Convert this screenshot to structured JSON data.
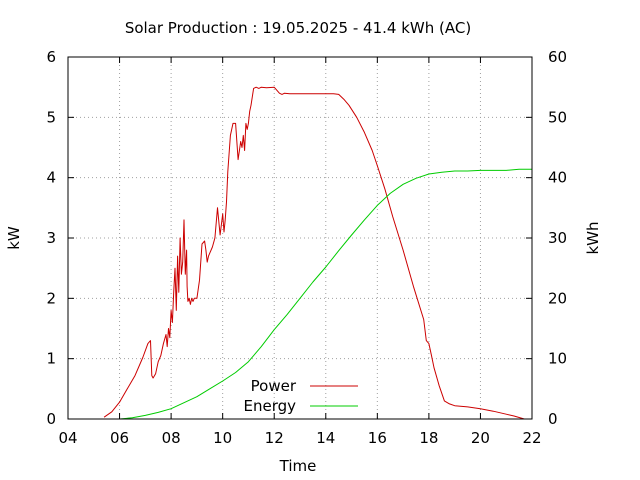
{
  "chart_data": {
    "type": "line",
    "title": "Solar Production : 19.05.2025 - 41.4 kWh (AC)",
    "xlabel": "Time",
    "ylabel": "kW",
    "y2label": "kWh",
    "xlim": [
      4,
      22
    ],
    "ylim": [
      0,
      6
    ],
    "y2lim": [
      0,
      60
    ],
    "x_ticks": [
      "04",
      "06",
      "08",
      "10",
      "12",
      "14",
      "16",
      "18",
      "20",
      "22"
    ],
    "y_ticks": [
      "0",
      "1",
      "2",
      "3",
      "4",
      "5",
      "6"
    ],
    "y2_ticks": [
      "0",
      "10",
      "20",
      "30",
      "40",
      "50",
      "60"
    ],
    "grid": true,
    "legend_position": "bottom-center",
    "series": [
      {
        "name": "Power",
        "axis": "y",
        "color": "#cc0000",
        "x": [
          5.4,
          5.7,
          6.0,
          6.3,
          6.6,
          6.9,
          7.1,
          7.2,
          7.25,
          7.3,
          7.4,
          7.5,
          7.6,
          7.7,
          7.8,
          7.85,
          7.9,
          7.95,
          8.0,
          8.05,
          8.1,
          8.15,
          8.2,
          8.25,
          8.3,
          8.35,
          8.4,
          8.45,
          8.5,
          8.55,
          8.6,
          8.62,
          8.65,
          8.7,
          8.75,
          8.8,
          8.85,
          8.9,
          9.0,
          9.1,
          9.2,
          9.3,
          9.35,
          9.4,
          9.45,
          9.5,
          9.6,
          9.7,
          9.8,
          9.9,
          10.0,
          10.05,
          10.1,
          10.15,
          10.2,
          10.3,
          10.4,
          10.5,
          10.6,
          10.7,
          10.75,
          10.8,
          10.85,
          10.9,
          10.95,
          11.0,
          11.05,
          11.1,
          11.2,
          11.3,
          11.4,
          11.5,
          11.7,
          12.0,
          12.2,
          12.3,
          12.4,
          12.6,
          13.0,
          13.5,
          14.0,
          14.3,
          14.5,
          14.7,
          14.9,
          15.2,
          15.5,
          15.8,
          16.0,
          16.3,
          16.6,
          17.0,
          17.4,
          17.8,
          17.9,
          18.0,
          18.1,
          18.2,
          18.4,
          18.6,
          18.8,
          19.0,
          19.5,
          20.0,
          20.5,
          21.0,
          21.3,
          21.7
        ],
        "values": [
          0.03,
          0.12,
          0.28,
          0.5,
          0.72,
          1.02,
          1.25,
          1.3,
          0.72,
          0.68,
          0.75,
          0.95,
          1.05,
          1.25,
          1.4,
          1.2,
          1.5,
          1.35,
          1.8,
          1.6,
          2.1,
          2.5,
          1.8,
          2.7,
          2.1,
          3.0,
          2.4,
          2.6,
          3.3,
          2.4,
          2.8,
          2.2,
          1.95,
          2.0,
          1.9,
          2.0,
          1.95,
          2.0,
          2.0,
          2.3,
          2.9,
          2.95,
          2.8,
          2.6,
          2.7,
          2.75,
          2.85,
          3.0,
          3.5,
          3.05,
          3.4,
          3.1,
          3.3,
          3.6,
          4.1,
          4.7,
          4.9,
          4.9,
          4.3,
          4.6,
          4.5,
          4.7,
          4.45,
          4.9,
          4.8,
          4.9,
          5.1,
          5.2,
          5.48,
          5.5,
          5.48,
          5.5,
          5.49,
          5.5,
          5.4,
          5.38,
          5.4,
          5.39,
          5.39,
          5.39,
          5.39,
          5.39,
          5.38,
          5.3,
          5.2,
          5.0,
          4.75,
          4.45,
          4.2,
          3.8,
          3.35,
          2.8,
          2.2,
          1.65,
          1.3,
          1.25,
          1.05,
          0.85,
          0.55,
          0.3,
          0.25,
          0.22,
          0.2,
          0.17,
          0.13,
          0.08,
          0.05,
          0.0
        ]
      },
      {
        "name": "Energy",
        "axis": "y2",
        "color": "#00cc00",
        "x": [
          6.0,
          6.5,
          7.0,
          7.5,
          8.0,
          8.5,
          9.0,
          9.5,
          10.0,
          10.5,
          11.0,
          11.5,
          12.0,
          12.5,
          13.0,
          13.5,
          14.0,
          14.5,
          15.0,
          15.5,
          16.0,
          16.5,
          17.0,
          17.5,
          18.0,
          18.5,
          19.0,
          19.5,
          20.0,
          20.5,
          21.0,
          21.5,
          22.0
        ],
        "values": [
          0.0,
          0.2,
          0.6,
          1.1,
          1.7,
          2.7,
          3.7,
          5.0,
          6.3,
          7.7,
          9.5,
          12.0,
          14.8,
          17.3,
          20.0,
          22.7,
          25.2,
          27.9,
          30.5,
          33.0,
          35.4,
          37.4,
          38.9,
          39.9,
          40.6,
          40.9,
          41.1,
          41.1,
          41.2,
          41.2,
          41.2,
          41.4,
          41.4
        ]
      }
    ]
  }
}
